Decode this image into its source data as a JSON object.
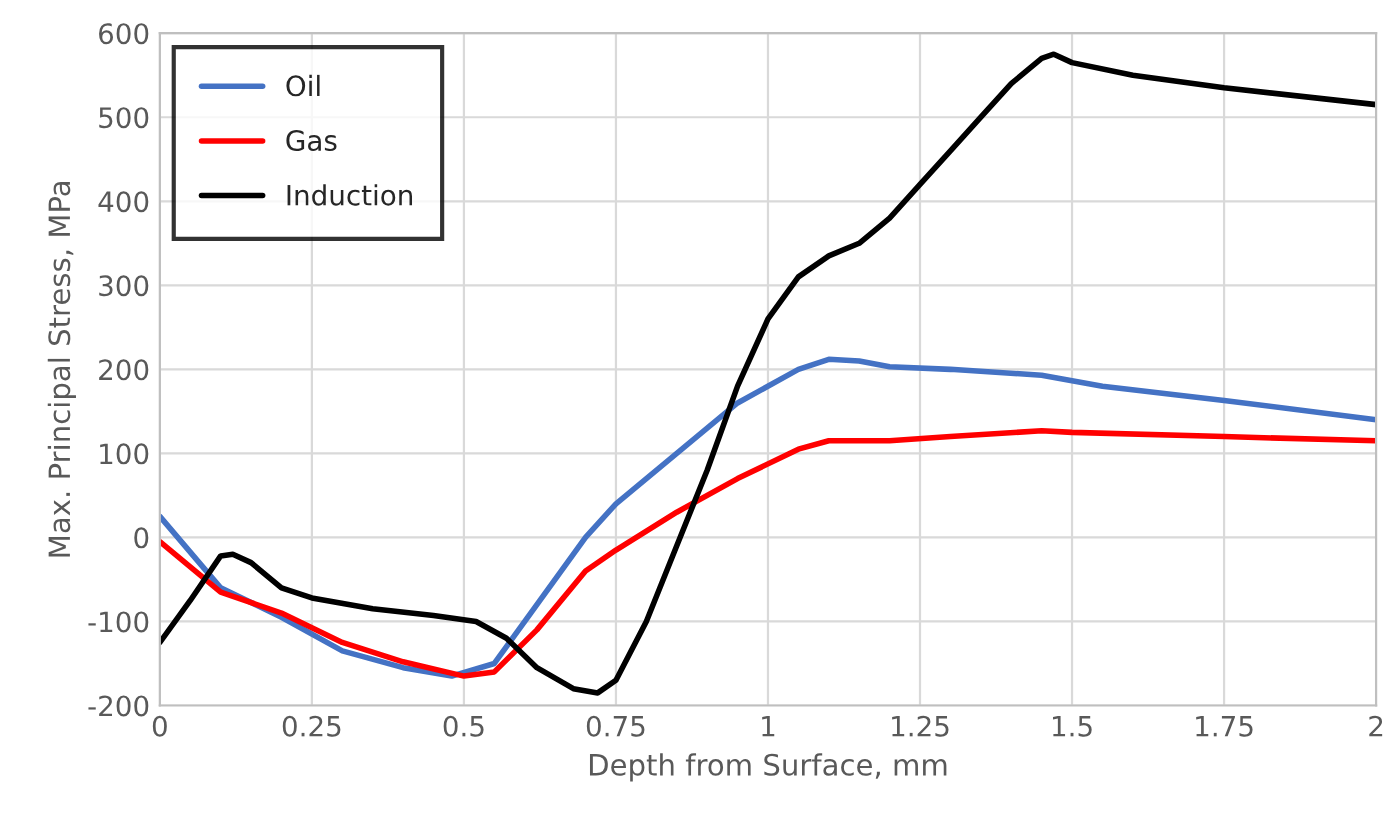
{
  "chart_data": {
    "type": "line",
    "xlabel": "Depth from Surface, mm",
    "ylabel": "Max. Principal Stress, MPa",
    "xlim": [
      0,
      2
    ],
    "xticks": [
      0,
      0.25,
      0.5,
      0.75,
      1,
      1.25,
      1.5,
      1.75,
      2
    ],
    "ylim": [
      -200,
      600
    ],
    "yticks": [
      -200,
      -100,
      0,
      100,
      200,
      300,
      400,
      500,
      600
    ],
    "grid": true,
    "legend": "top left",
    "marker": "none",
    "line_style": "solid",
    "series": [
      {
        "name": "Oil",
        "color": "#4472c4",
        "x": [
          0,
          0.1,
          0.2,
          0.3,
          0.4,
          0.48,
          0.55,
          0.62,
          0.7,
          0.75,
          0.85,
          0.95,
          1.05,
          1.1,
          1.15,
          1.2,
          1.3,
          1.45,
          1.55,
          1.75,
          2.0
        ],
        "values": [
          25,
          -60,
          -95,
          -135,
          -155,
          -165,
          -150,
          -80,
          0,
          40,
          100,
          160,
          200,
          212,
          210,
          203,
          200,
          193,
          180,
          163,
          140
        ]
      },
      {
        "name": "Gas",
        "color": "#ff0000",
        "x": [
          0,
          0.1,
          0.2,
          0.3,
          0.4,
          0.5,
          0.55,
          0.62,
          0.7,
          0.75,
          0.85,
          0.95,
          1.05,
          1.1,
          1.2,
          1.3,
          1.45,
          1.5,
          1.75,
          2.0
        ],
        "values": [
          -5,
          -65,
          -90,
          -125,
          -148,
          -165,
          -160,
          -110,
          -40,
          -15,
          30,
          70,
          105,
          115,
          115,
          120,
          127,
          125,
          120,
          115
        ]
      },
      {
        "name": "Induction",
        "color": "#000000",
        "x": [
          0,
          0.05,
          0.1,
          0.12,
          0.15,
          0.2,
          0.25,
          0.35,
          0.45,
          0.52,
          0.57,
          0.62,
          0.68,
          0.72,
          0.75,
          0.8,
          0.85,
          0.9,
          0.95,
          1.0,
          1.05,
          1.1,
          1.15,
          1.2,
          1.25,
          1.3,
          1.35,
          1.4,
          1.45,
          1.47,
          1.5,
          1.6,
          1.75,
          2.0
        ],
        "values": [
          -125,
          -75,
          -22,
          -20,
          -30,
          -60,
          -72,
          -85,
          -93,
          -100,
          -120,
          -155,
          -180,
          -185,
          -170,
          -100,
          -10,
          80,
          180,
          260,
          310,
          335,
          350,
          380,
          420,
          460,
          500,
          540,
          570,
          575,
          565,
          550,
          535,
          515
        ]
      }
    ]
  }
}
